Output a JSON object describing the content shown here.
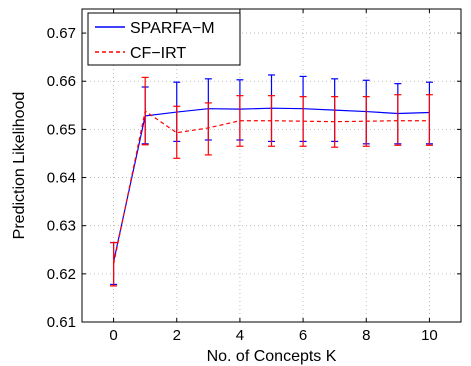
{
  "chart_data": {
    "type": "line",
    "title": "",
    "xlabel": "No. of Concepts K",
    "ylabel": "Prediction Likelihood",
    "xlim": [
      -1,
      11
    ],
    "ylim": [
      0.61,
      0.675
    ],
    "xticks": [
      0,
      2,
      4,
      6,
      8,
      10
    ],
    "yticks": [
      0.61,
      0.62,
      0.63,
      0.64,
      0.65,
      0.66,
      0.67
    ],
    "ytick_labels": [
      "0.61",
      "0.62",
      "0.63",
      "0.64",
      "0.65",
      "0.66",
      "0.67"
    ],
    "grid": true,
    "legend_position": "top-left",
    "x": [
      0,
      1,
      2,
      3,
      4,
      5,
      6,
      7,
      8,
      9,
      10
    ],
    "series": [
      {
        "name": "SPARFA−M",
        "color": "#0000ff",
        "style": "solid",
        "values": [
          0.6225,
          0.6528,
          0.6536,
          0.6543,
          0.6542,
          0.6544,
          0.6543,
          0.654,
          0.6537,
          0.6533,
          0.6535
        ],
        "err_low": [
          0.6178,
          0.647,
          0.6475,
          0.6478,
          0.6478,
          0.6475,
          0.6475,
          0.6475,
          0.647,
          0.647,
          0.647
        ],
        "err_high": [
          0.6265,
          0.6588,
          0.6598,
          0.6605,
          0.6603,
          0.6613,
          0.661,
          0.6605,
          0.6602,
          0.6595,
          0.6598
        ]
      },
      {
        "name": "CF−IRT",
        "color": "#ff0000",
        "style": "dashed",
        "values": [
          0.622,
          0.6538,
          0.6493,
          0.6503,
          0.6518,
          0.6518,
          0.6517,
          0.6516,
          0.6517,
          0.6518,
          0.6518
        ],
        "err_low": [
          0.6175,
          0.6468,
          0.644,
          0.6447,
          0.6465,
          0.6465,
          0.6465,
          0.6463,
          0.6465,
          0.6467,
          0.6467
        ],
        "err_high": [
          0.6265,
          0.6608,
          0.6548,
          0.6555,
          0.657,
          0.657,
          0.6568,
          0.6568,
          0.6568,
          0.6572,
          0.6572
        ]
      }
    ]
  }
}
